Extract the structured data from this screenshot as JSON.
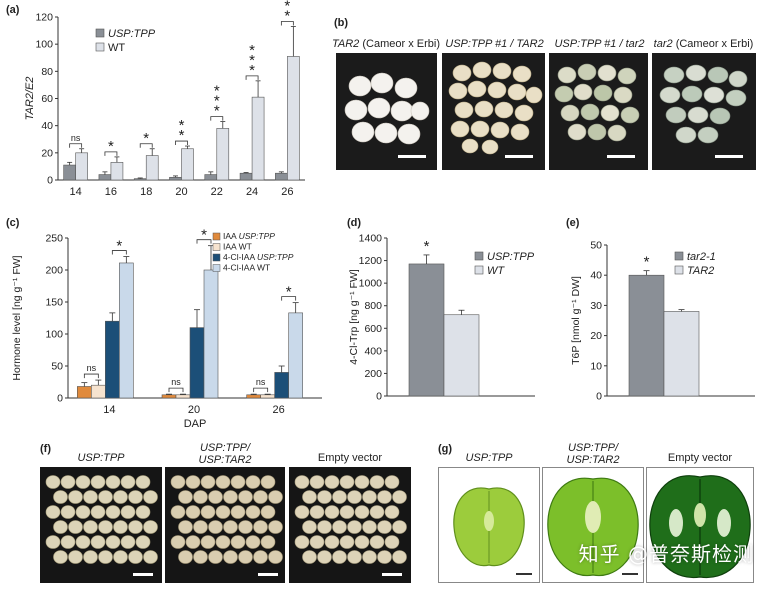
{
  "panel_a": {
    "letter": "(a)",
    "chart_data": {
      "type": "bar",
      "ylabel": "TAR2/E2",
      "categories": [
        "14",
        "16",
        "18",
        "20",
        "22",
        "24",
        "26"
      ],
      "ylim": [
        0,
        120
      ],
      "yticks": [
        0,
        20,
        40,
        60,
        80,
        100,
        120
      ],
      "series": [
        {
          "name": "USP:TPP",
          "color": "#8a8f96",
          "values": [
            11,
            4,
            1,
            2,
            4,
            5,
            5
          ],
          "errors": [
            2,
            2,
            0.5,
            1,
            2,
            0.5,
            1
          ]
        },
        {
          "name": "WT",
          "color": "#dde1e8",
          "values": [
            20,
            13,
            18,
            23,
            38,
            61,
            91
          ],
          "errors": [
            3,
            4,
            5,
            2,
            5,
            12,
            22
          ]
        }
      ],
      "significance": [
        "ns",
        "*",
        "*",
        "**",
        "***",
        "***",
        "***"
      ]
    }
  },
  "panel_b": {
    "letter": "(b)",
    "photos": [
      {
        "title_italic": "TAR2",
        "title_rest": " (Cameor x Erbi)"
      },
      {
        "title_italic": "USP:TPP #1 / TAR2",
        "title_rest": ""
      },
      {
        "title_italic": "USP:TPP #1 / tar2",
        "title_rest": ""
      },
      {
        "title_italic": "tar2",
        "title_rest": " (Cameor x Erbi)"
      }
    ]
  },
  "panel_c": {
    "letter": "(c)",
    "chart_data": {
      "type": "bar",
      "ylabel": "Hormone level [ng g⁻¹ FW]",
      "xlabel": "DAP",
      "categories": [
        "14",
        "20",
        "26"
      ],
      "ylim": [
        0,
        250
      ],
      "yticks": [
        0,
        50,
        100,
        150,
        200,
        250
      ],
      "series": [
        {
          "name": "IAA USP:TPP",
          "color": "#e08a3c",
          "values": [
            18,
            5,
            5
          ],
          "errors": [
            6,
            1,
            1
          ]
        },
        {
          "name": "IAA WT",
          "color": "#f6e3cf",
          "values": [
            20,
            5,
            5
          ],
          "errors": [
            8,
            1,
            1
          ]
        },
        {
          "name": "4-Cl-IAA USP:TPP",
          "color": "#1c4f78",
          "values": [
            120,
            110,
            40
          ],
          "errors": [
            13,
            28,
            10
          ]
        },
        {
          "name": "4-Cl-IAA WT",
          "color": "#c9d9ea",
          "values": [
            211,
            200,
            133
          ],
          "errors": [
            10,
            38,
            16
          ]
        }
      ],
      "significance_top": [
        "*",
        "*",
        "*"
      ],
      "significance_low": [
        "ns",
        "ns",
        "ns"
      ]
    },
    "legend": [
      {
        "prefix": "IAA ",
        "suffix": "USP:TPP"
      },
      {
        "prefix": "IAA WT",
        "suffix": ""
      },
      {
        "prefix": "4-Cl-IAA ",
        "suffix": "USP:TPP"
      },
      {
        "prefix": "4-Cl-IAA WT",
        "suffix": ""
      }
    ]
  },
  "panel_d": {
    "letter": "(d)",
    "chart_data": {
      "type": "bar",
      "ylabel": "4-Cl-Trp [ng g⁻¹ FW]",
      "ylim": [
        0,
        1400
      ],
      "yticks": [
        0,
        200,
        400,
        600,
        800,
        1000,
        1200,
        1400
      ],
      "series": [
        {
          "name": "USP:TPP",
          "color": "#8a8f96",
          "values": [
            1170
          ],
          "errors": [
            80
          ]
        },
        {
          "name": "WT",
          "color": "#dde1e8",
          "values": [
            720
          ],
          "errors": [
            40
          ]
        }
      ],
      "significance": [
        "*"
      ]
    }
  },
  "panel_e": {
    "letter": "(e)",
    "chart_data": {
      "type": "bar",
      "ylabel": "T6P [nmol g⁻¹ DW]",
      "ylim": [
        0,
        50
      ],
      "yticks": [
        0,
        10,
        20,
        30,
        40,
        50
      ],
      "series": [
        {
          "name": "tar2-1",
          "color": "#8a8f96",
          "values": [
            40
          ],
          "errors": [
            1.5
          ]
        },
        {
          "name": "TAR2",
          "color": "#dde1e8",
          "values": [
            28
          ],
          "errors": [
            0.6
          ]
        }
      ],
      "significance": [
        "*"
      ]
    }
  },
  "panel_f": {
    "letter": "(f)",
    "labels": [
      "USP:TPP",
      "USP:TPP/\nUSP:TAR2",
      "Empty vector"
    ]
  },
  "panel_g": {
    "letter": "(g)",
    "labels": [
      "USP:TPP",
      "USP:TPP/\nUSP:TAR2",
      "Empty vector"
    ]
  },
  "watermark": "知乎 @普奈斯检测"
}
